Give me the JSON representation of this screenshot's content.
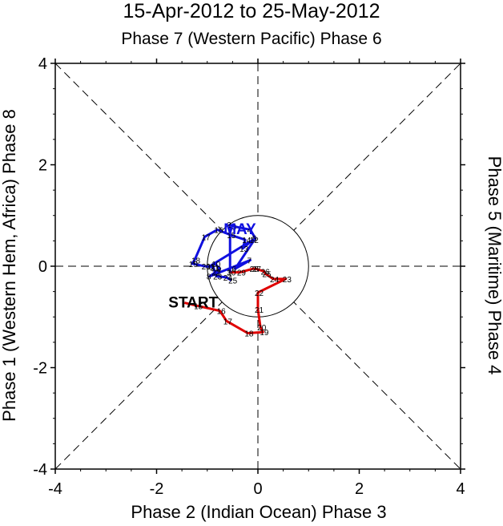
{
  "chart_data": {
    "type": "line",
    "title": "15-Apr-2012 to 25-May-2012",
    "top_label": "Phase 7 (Western Pacific) Phase 6",
    "bottom_label": "Phase 2 (Indian Ocean) Phase 3",
    "left_label": "Phase 1 (Western Hem, Africa) Phase 8",
    "right_label": "Phase 5 (Maritime) Phase 4",
    "xlim": [
      -4,
      4
    ],
    "ylim": [
      -4,
      4
    ],
    "x_ticks": [
      "-4",
      "-2",
      "0",
      "2",
      "4"
    ],
    "y_ticks": [
      "-4",
      "-2",
      "0",
      "2",
      "4"
    ],
    "unit_circle_radius": 1,
    "start_label": "START",
    "series": [
      {
        "name": "April",
        "color": "#e00000",
        "points": [
          {
            "x": -1.45,
            "y": -0.72,
            "label": ""
          },
          {
            "x": -1.2,
            "y": -0.78,
            "label": "15"
          },
          {
            "x": -0.75,
            "y": -0.88,
            "label": "16"
          },
          {
            "x": -0.62,
            "y": -1.08,
            "label": "17"
          },
          {
            "x": -0.2,
            "y": -1.32,
            "label": "18"
          },
          {
            "x": 0.1,
            "y": -1.3,
            "label": "19"
          },
          {
            "x": 0.05,
            "y": -1.2,
            "label": "20"
          },
          {
            "x": 0.0,
            "y": -0.85,
            "label": "21"
          },
          {
            "x": 0.0,
            "y": -0.52,
            "label": "22"
          },
          {
            "x": 0.55,
            "y": -0.25,
            "label": "23"
          },
          {
            "x": 0.3,
            "y": -0.25,
            "label": "24"
          },
          {
            "x": 0.15,
            "y": -0.15,
            "label": "25"
          },
          {
            "x": 0.12,
            "y": -0.1,
            "label": "26"
          },
          {
            "x": -0.05,
            "y": -0.05,
            "label": "27"
          },
          {
            "x": -0.1,
            "y": -0.05,
            "label": "28"
          },
          {
            "x": -0.35,
            "y": -0.12,
            "label": "29"
          },
          {
            "x": -0.55,
            "y": -0.12,
            "label": "30"
          }
        ]
      },
      {
        "name": "May",
        "color": "#1010e0",
        "label_text": "MAY",
        "points": [
          {
            "x": -0.55,
            "y": -0.12,
            "label": "1"
          },
          {
            "x": -0.55,
            "y": 0.82,
            "label": "2"
          },
          {
            "x": -0.45,
            "y": 0.78,
            "label": "3"
          },
          {
            "x": -0.15,
            "y": 0.72,
            "label": "4"
          },
          {
            "x": -0.05,
            "y": 0.55,
            "label": "5"
          },
          {
            "x": -0.45,
            "y": -0.05,
            "label": "6"
          },
          {
            "x": -0.15,
            "y": 0.12,
            "label": "7"
          },
          {
            "x": -0.95,
            "y": -0.2,
            "label": "8"
          },
          {
            "x": -0.75,
            "y": -0.05,
            "label": "9"
          },
          {
            "x": -0.85,
            "y": 0.05,
            "label": "10"
          },
          {
            "x": -0.95,
            "y": 0.0,
            "label": "11"
          },
          {
            "x": -0.1,
            "y": 0.52,
            "label": "12"
          },
          {
            "x": -0.3,
            "y": 0.35,
            "label": "13"
          },
          {
            "x": -0.25,
            "y": 0.52,
            "label": "14"
          },
          {
            "x": -0.55,
            "y": 0.62,
            "label": "15"
          },
          {
            "x": -0.8,
            "y": 0.72,
            "label": "16"
          },
          {
            "x": -1.05,
            "y": 0.58,
            "label": "17"
          },
          {
            "x": -1.25,
            "y": 0.12,
            "label": "18"
          },
          {
            "x": -1.3,
            "y": 0.05,
            "label": "19"
          },
          {
            "x": -1.05,
            "y": 0.0,
            "label": "20"
          },
          {
            "x": -0.88,
            "y": -0.02,
            "label": "21"
          },
          {
            "x": -0.85,
            "y": -0.12,
            "label": "22"
          },
          {
            "x": -0.82,
            "y": -0.2,
            "label": "23"
          },
          {
            "x": -0.62,
            "y": -0.22,
            "label": "24"
          },
          {
            "x": -0.52,
            "y": -0.28,
            "label": "25"
          }
        ]
      }
    ]
  }
}
